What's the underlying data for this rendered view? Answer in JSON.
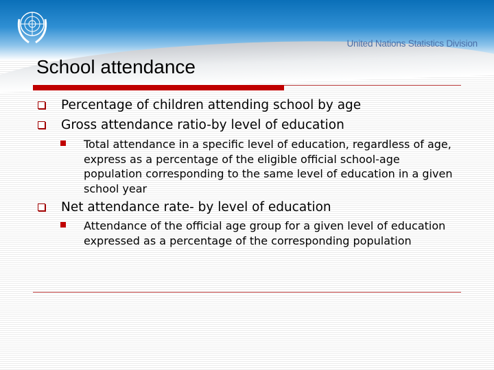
{
  "header": {
    "organization": "United Nations Statistics Division",
    "logo": "un-emblem"
  },
  "title": "School attendance",
  "bullets": [
    {
      "text": "Percentage of children attending school by age"
    },
    {
      "text": "Gross attendance ratio-by level of education",
      "sub": "Total attendance in a specific level of education, regardless of age, express as a percentage of the eligible official school-age population corresponding to the same level of education in a given school year"
    },
    {
      "text": "Net attendance rate- by level of education",
      "sub": "Attendance of the official age group for a given level of education expressed as a percentage of the corresponding population"
    }
  ],
  "colors": {
    "accent": "#c00000",
    "header_blue": "#0a6fb8"
  }
}
